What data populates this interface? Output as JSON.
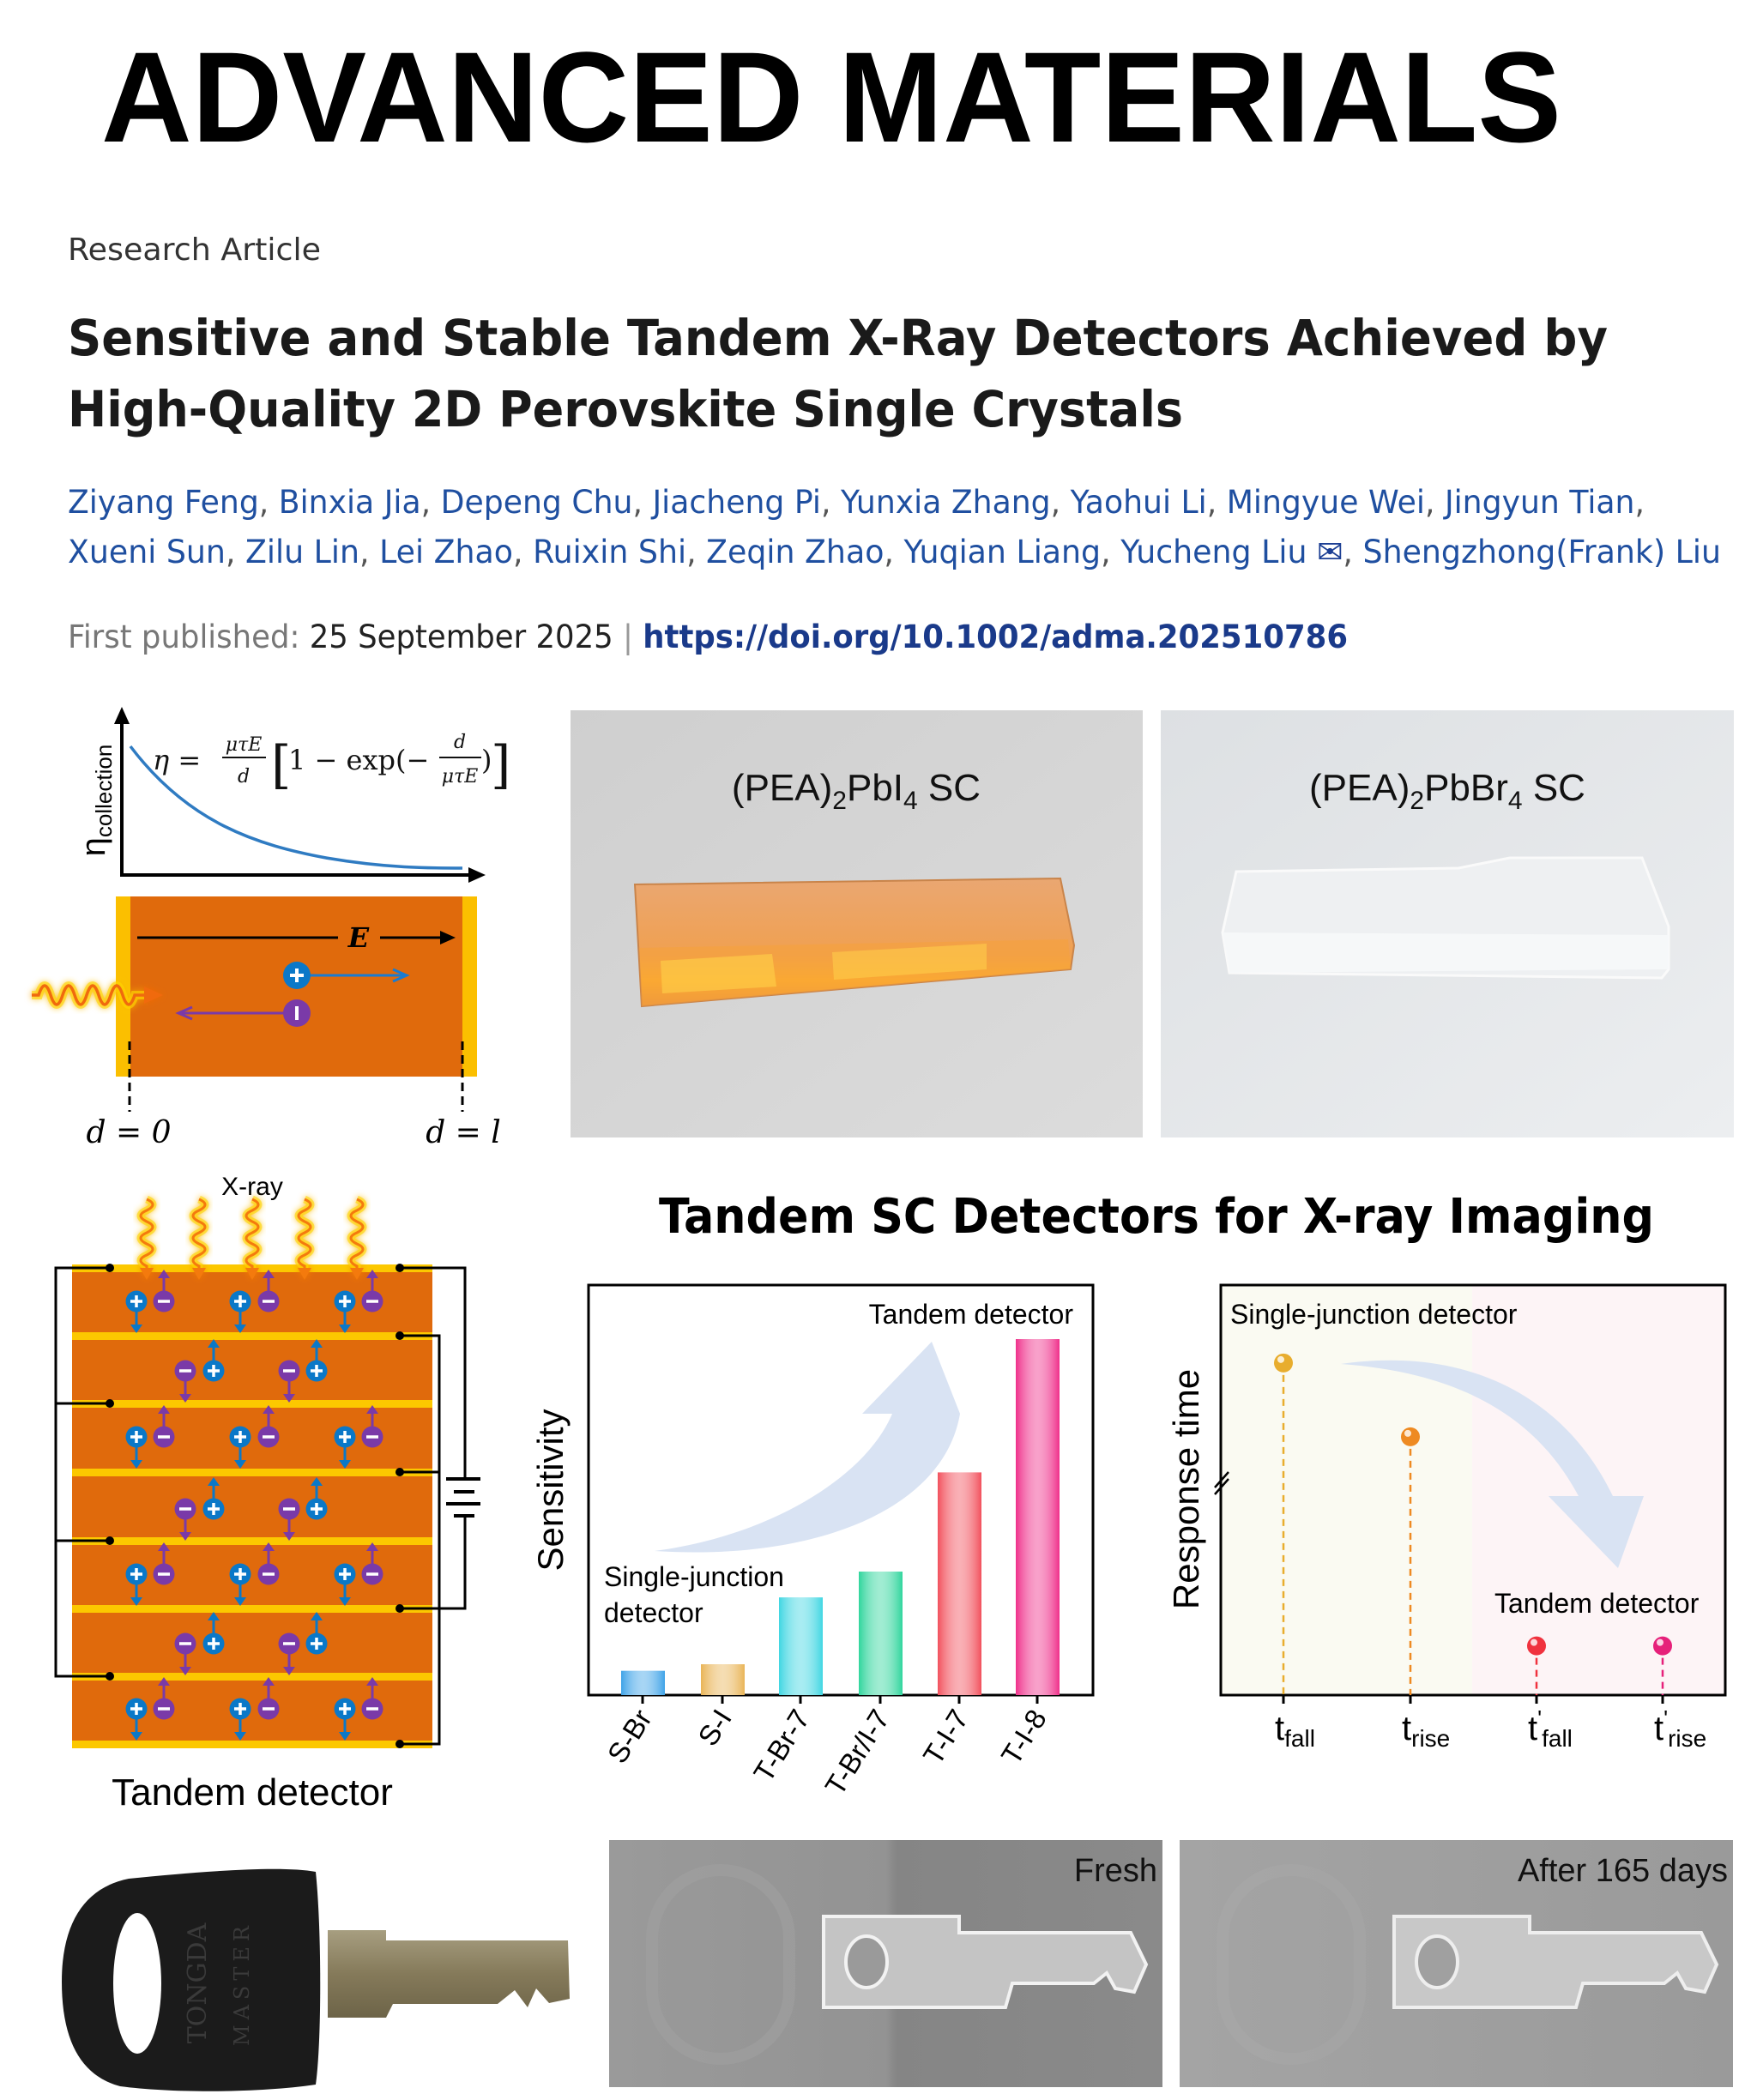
{
  "journal": {
    "logo_text": "ADVANCED MATERIALS"
  },
  "article": {
    "type": "Research Article",
    "title_lines": [
      "Sensitive and Stable Tandem X-Ray Detectors Achieved by",
      "High-Quality 2D Perovskite Single Crystals"
    ],
    "authors_line1": [
      "Ziyang Feng",
      "Binxia Jia",
      "Depeng Chu",
      "Jiacheng Pi",
      "Yunxia Zhang",
      "Yaohui Li",
      "Mingyue Wei",
      "Jingyun Tian"
    ],
    "authors_line2": [
      "Xueni Sun",
      "Zilu Lin",
      "Lei Zhao",
      "Ruixin Shi",
      "Zeqin Zhao",
      "Yuqian Liang",
      "Yucheng Liu",
      "Shengzhong(Frank) Liu"
    ],
    "corresponding_icon": "mail-icon",
    "first_published_label": "First published:",
    "first_published_date": "25 September 2025",
    "separator": "|",
    "doi": "https://doi.org/10.1002/adma.202510786",
    "colors": {
      "author": "#1f4fa0",
      "doi": "#1a3a8a",
      "muted": "#777777"
    }
  },
  "abstract_figure": {
    "collection_diagram": {
      "ylabel_main": "η",
      "ylabel_sub": "collection",
      "equation": {
        "lhs": "η =",
        "frac1_num": "μτE",
        "frac1_den": "d",
        "bracket_open": "[",
        "body": "1 − exp(−",
        "frac2_num": "d",
        "frac2_den": "μτE",
        "close": ")",
        "bracket_close": "]"
      },
      "field_label": "E",
      "left_label": "d = 0",
      "right_label": "d = l",
      "colors": {
        "crystal": "#e06a0c",
        "electrode": "#fbbf00",
        "hole": "#0a78c8",
        "electron": "#7a3aa8",
        "curve": "#2f7bc2"
      }
    },
    "photos": [
      {
        "label_main": "(PEA)",
        "label_sub1": "2",
        "label_mid": "PbI",
        "label_sub2": "4",
        "label_end": " SC"
      },
      {
        "label_main": "(PEA)",
        "label_sub1": "2",
        "label_mid": "PbBr",
        "label_sub2": "4",
        "label_end": " SC"
      }
    ],
    "tandem_diagram": {
      "xray_label": "X-ray",
      "caption": "Tandem detector",
      "layers": 7
    },
    "section_title": "Tandem SC Detectors for X-ray Imaging",
    "key_photo": {
      "logo_lettering": [
        "TONGDA",
        "MASTER"
      ]
    },
    "xray_images": [
      {
        "label": "Fresh"
      },
      {
        "label": "After 165 days"
      }
    ]
  },
  "chart_data": [
    {
      "type": "bar",
      "title": "",
      "xlabel": "",
      "ylabel": "Sensitivity",
      "categories": [
        "S-Br",
        "S-I",
        "T-Br-7",
        "T-Br/I-7",
        "T-I-7",
        "T-I-8"
      ],
      "values": [
        0.059,
        0.075,
        0.238,
        0.301,
        0.543,
        0.868
      ],
      "ylim": [
        0,
        1
      ],
      "y_ticks_shown": false,
      "grid": false,
      "colors": [
        "#3ea3e8",
        "#e9b456",
        "#3fd6e2",
        "#2fd59c",
        "#f2505c",
        "#ef2f8a"
      ],
      "annotations": [
        "Tandem detector",
        "Single-junction",
        "detector"
      ],
      "arrow": "increasing"
    },
    {
      "type": "scatter",
      "title": "",
      "xlabel": "",
      "ylabel": "Response time",
      "categories": [
        {
          "base": "t",
          "prime": "",
          "sub": "fall"
        },
        {
          "base": "t",
          "prime": "",
          "sub": "rise"
        },
        {
          "base": "t",
          "prime": "'",
          "sub": "fall"
        },
        {
          "base": "t",
          "prime": "'",
          "sub": "rise"
        }
      ],
      "values": [
        0.81,
        0.63,
        0.12,
        0.12
      ],
      "ylim": [
        0,
        1
      ],
      "y_axis_break": true,
      "y_ticks_shown": false,
      "grid": false,
      "colors": [
        "#e8ad2e",
        "#ee8a22",
        "#f0323e",
        "#e6207a"
      ],
      "region_colors": [
        "#fafaf2",
        "#fdf4f6"
      ],
      "annotations": [
        "Single-junction detector",
        "Tandem detector"
      ],
      "arrow": "decreasing"
    }
  ]
}
